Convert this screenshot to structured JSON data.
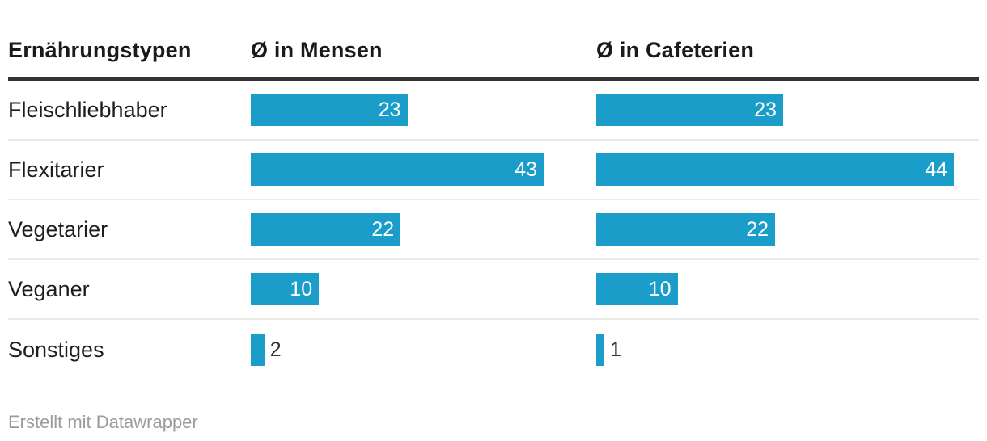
{
  "chart_data": {
    "type": "bar",
    "layout": "grouped-horizontal-bar-table",
    "header_label": "Ernährungstypen",
    "categories": [
      "Fleischliebhaber",
      "Flexitarier",
      "Vegetarier",
      "Veganer",
      "Sonstiges"
    ],
    "series": [
      {
        "name": "Ø in Mensen",
        "values": [
          23,
          43,
          22,
          10,
          2
        ]
      },
      {
        "name": "Ø in Cafeterien",
        "values": [
          23,
          44,
          22,
          10,
          1
        ]
      }
    ],
    "value_labels_shown": true,
    "grid": false,
    "legend": "none",
    "xlim_per_column": [
      [
        0,
        43
      ],
      [
        0,
        44
      ]
    ]
  },
  "footer": {
    "attribution": "Erstellt mit Datawrapper"
  },
  "colors": {
    "bar": "#1a9ec9",
    "header_rule": "#333333",
    "row_separator": "#e9e9e9",
    "text": "#1d1d1d",
    "value_inside": "#ffffff",
    "value_outside": "#333333",
    "footer_text": "#9b9b9b",
    "background": "#ffffff"
  }
}
